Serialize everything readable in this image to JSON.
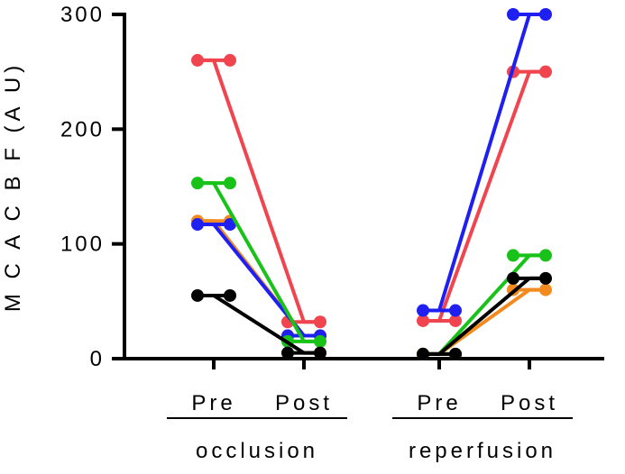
{
  "chart_data": {
    "type": "line",
    "ylabel": "M C A  C B F  (A U)",
    "ylim": [
      0,
      300
    ],
    "y_ticks": [
      "0",
      "100",
      "200",
      "300"
    ],
    "x_categories": [
      "Pre",
      "Post",
      "Pre",
      "Post"
    ],
    "groups": [
      {
        "label": "occlusion",
        "categories": [
          0,
          1
        ]
      },
      {
        "label": "reperfusion",
        "categories": [
          2,
          3
        ]
      }
    ],
    "grid": false,
    "legend": "none",
    "series": [
      {
        "color": "#f0454f",
        "occlusion": [
          260,
          32
        ],
        "reperfusion": [
          33,
          250
        ]
      },
      {
        "color": "#f28a1f",
        "occlusion": [
          120,
          20
        ],
        "reperfusion": [
          4,
          60
        ]
      },
      {
        "color": "#1f1ff2",
        "occlusion": [
          117,
          20
        ],
        "reperfusion": [
          42,
          300
        ]
      },
      {
        "color": "#19c219",
        "occlusion": [
          153,
          15
        ],
        "reperfusion": [
          4,
          90
        ]
      },
      {
        "color": "#000000",
        "occlusion": [
          55,
          5
        ],
        "reperfusion": [
          4,
          70
        ]
      }
    ]
  }
}
